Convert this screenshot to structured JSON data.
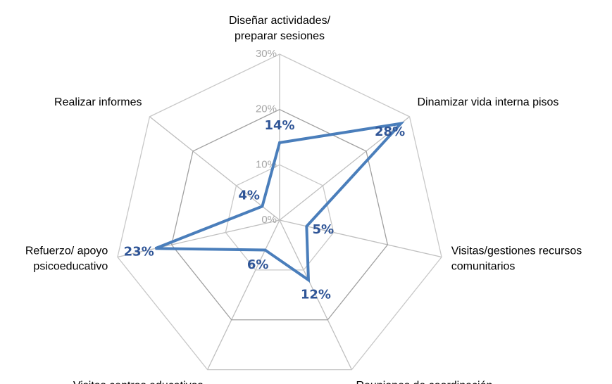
{
  "chart_data": {
    "type": "radar",
    "categories": [
      "Diseñar actividades/\npreparar sesiones",
      "Dinamizar vida interna pisos",
      "Visitas/gestiones recursos\ncomunitarios",
      "Reuniones de coordinación",
      "Visitas centros educativos",
      "Refuerzo/ apoyo\npsicoeducativo",
      "Realizar informes"
    ],
    "values": [
      14,
      28,
      5,
      12,
      6,
      23,
      4
    ],
    "value_labels": [
      "14%",
      "28%",
      "5%",
      "12%",
      "6%",
      "23%",
      "4%"
    ],
    "color": "#4a7ebb",
    "ylim": [
      0,
      30
    ],
    "yticks": [
      {
        "value": 0,
        "label": "0%"
      },
      {
        "value": 10,
        "label": "10%"
      },
      {
        "value": 20,
        "label": "20%"
      },
      {
        "value": 30,
        "label": "30%"
      }
    ],
    "grid": true
  }
}
